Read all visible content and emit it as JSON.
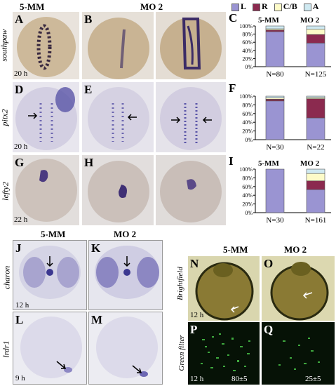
{
  "column_headers": {
    "mm_top": "5-MM",
    "mo_top": "MO 2",
    "mm_bottom_left": "5-MM",
    "mo_bottom_left": "MO 2",
    "mm_bottom_right": "5-MM",
    "mo_bottom_right": "MO 2"
  },
  "panel_labels": {
    "A": "A",
    "B": "B",
    "C": "C",
    "D": "D",
    "E": "E",
    "F": "F",
    "G": "G",
    "H": "H",
    "I": "I",
    "J": "J",
    "K": "K",
    "L": "L",
    "M": "M",
    "N": "N",
    "O": "O",
    "P": "P",
    "Q": "Q"
  },
  "row_labels": {
    "southpaw": "southpaw",
    "pitx2": "pitx2",
    "lefty2": "lefty2",
    "charon": "charon",
    "lrdr1": "lrdr1",
    "brightfield": "Brightfield",
    "green_filter": "Green filter"
  },
  "times": {
    "t20a": "20 h",
    "t20b": "20 h",
    "t22": "22 h",
    "t12a": "12 h",
    "t9": "9 h",
    "t12b": "12 h",
    "t12c": "12 h"
  },
  "counts": {
    "p_mm": "80±5",
    "q_mo": "25±5"
  },
  "legend": {
    "L": "L",
    "R": "R",
    "CB": "C/B",
    "A": "A"
  },
  "colors": {
    "L": "#9a94d2",
    "R": "#8b2a4f",
    "CB": "#fdfbc8",
    "A": "#cfe9f1"
  },
  "chart_data": [
    {
      "type": "bar",
      "stacked": true,
      "panel": "C",
      "categories": [
        "5-MM",
        "MO 2"
      ],
      "yticks": [
        "0%",
        "20%",
        "40%",
        "60%",
        "80%",
        "100%"
      ],
      "ylim": [
        0,
        100
      ],
      "series": [
        {
          "name": "L",
          "values": [
            86,
            58
          ]
        },
        {
          "name": "R",
          "values": [
            4,
            21
          ]
        },
        {
          "name": "C/B",
          "values": [
            3,
            13
          ]
        },
        {
          "name": "A",
          "values": [
            7,
            8
          ]
        }
      ],
      "n_labels": [
        "N=80",
        "N=125"
      ]
    },
    {
      "type": "bar",
      "stacked": true,
      "panel": "F",
      "categories": [
        "5-MM",
        "MO 2"
      ],
      "yticks": [
        "0%",
        "20%",
        "40%",
        "60%",
        "80%",
        "100%"
      ],
      "ylim": [
        0,
        100
      ],
      "series": [
        {
          "name": "L",
          "values": [
            89,
            50
          ]
        },
        {
          "name": "R",
          "values": [
            4,
            44
          ]
        },
        {
          "name": "C/B",
          "values": [
            3,
            3
          ]
        },
        {
          "name": "A",
          "values": [
            4,
            3
          ]
        }
      ],
      "n_labels": [
        "N=30",
        "N=22"
      ]
    },
    {
      "type": "bar",
      "stacked": true,
      "panel": "I",
      "categories": [
        "5-MM",
        "MO 2"
      ],
      "yticks": [
        "0%",
        "20%",
        "40%",
        "60%",
        "80%",
        "100%"
      ],
      "ylim": [
        0,
        100
      ],
      "series": [
        {
          "name": "L",
          "values": [
            100,
            53
          ]
        },
        {
          "name": "R",
          "values": [
            0,
            20
          ]
        },
        {
          "name": "C/B",
          "values": [
            0,
            17
          ]
        },
        {
          "name": "A",
          "values": [
            0,
            10
          ]
        }
      ],
      "n_labels": [
        "N=30",
        "N=161"
      ]
    }
  ]
}
